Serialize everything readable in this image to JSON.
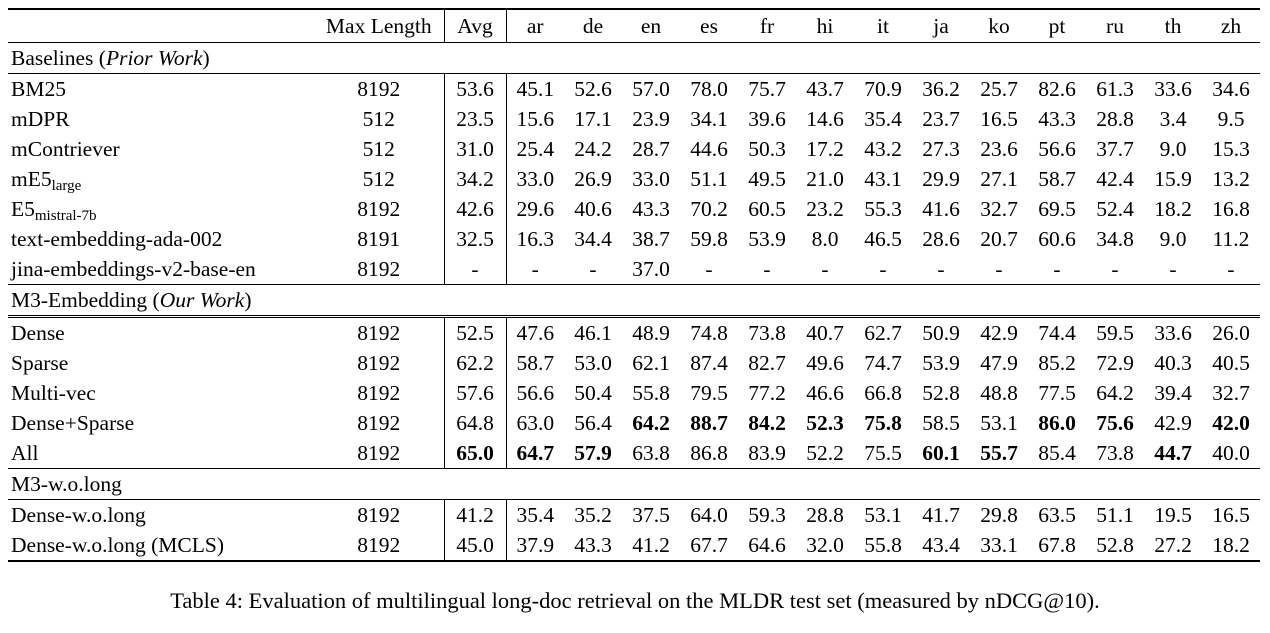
{
  "caption": "Table 4: Evaluation of multilingual long-doc retrieval on the MLDR test set (measured by nDCG@10).",
  "table": {
    "columns": [
      "",
      "Max Length",
      "Avg",
      "ar",
      "de",
      "en",
      "es",
      "fr",
      "hi",
      "it",
      "ja",
      "ko",
      "pt",
      "ru",
      "th",
      "zh"
    ],
    "sections": [
      {
        "title_plain": "Baselines (",
        "title_italic": "Prior Work",
        "title_end": ")",
        "rule_below": "single",
        "rows": [
          {
            "name": "BM25",
            "max_length": "8192",
            "avg": "53.6",
            "values": [
              "45.1",
              "52.6",
              "57.0",
              "78.0",
              "75.7",
              "43.7",
              "70.9",
              "36.2",
              "25.7",
              "82.6",
              "61.3",
              "33.6",
              "34.6"
            ]
          },
          {
            "name": "mDPR",
            "max_length": "512",
            "avg": "23.5",
            "values": [
              "15.6",
              "17.1",
              "23.9",
              "34.1",
              "39.6",
              "14.6",
              "35.4",
              "23.7",
              "16.5",
              "43.3",
              "28.8",
              "3.4",
              "9.5"
            ]
          },
          {
            "name": "mContriever",
            "max_length": "512",
            "avg": "31.0",
            "values": [
              "25.4",
              "24.2",
              "28.7",
              "44.6",
              "50.3",
              "17.2",
              "43.2",
              "27.3",
              "23.6",
              "56.6",
              "37.7",
              "9.0",
              "15.3"
            ]
          },
          {
            "name": "mE5",
            "name_sub": "large",
            "max_length": "512",
            "avg": "34.2",
            "values": [
              "33.0",
              "26.9",
              "33.0",
              "51.1",
              "49.5",
              "21.0",
              "43.1",
              "29.9",
              "27.1",
              "58.7",
              "42.4",
              "15.9",
              "13.2"
            ]
          },
          {
            "name": "E5",
            "name_sub": "mistral-7b",
            "max_length": "8192",
            "avg": "42.6",
            "values": [
              "29.6",
              "40.6",
              "43.3",
              "70.2",
              "60.5",
              "23.2",
              "55.3",
              "41.6",
              "32.7",
              "69.5",
              "52.4",
              "18.2",
              "16.8"
            ]
          },
          {
            "name": "text-embedding-ada-002",
            "max_length": "8191",
            "avg": "32.5",
            "values": [
              "16.3",
              "34.4",
              "38.7",
              "59.8",
              "53.9",
              "8.0",
              "46.5",
              "28.6",
              "20.7",
              "60.6",
              "34.8",
              "9.0",
              "11.2"
            ]
          },
          {
            "name": "jina-embeddings-v2-base-en",
            "max_length": "8192",
            "avg": "-",
            "values": [
              "-",
              "-",
              "37.0",
              "-",
              "-",
              "-",
              "-",
              "-",
              "-",
              "-",
              "-",
              "-",
              "-"
            ]
          }
        ]
      },
      {
        "title_plain": "M3-Embedding (",
        "title_italic": "Our Work",
        "title_end": ")",
        "rule_below": "double",
        "rows": [
          {
            "name": "Dense",
            "max_length": "8192",
            "avg": "52.5",
            "values": [
              "47.6",
              "46.1",
              "48.9",
              "74.8",
              "73.8",
              "40.7",
              "62.7",
              "50.9",
              "42.9",
              "74.4",
              "59.5",
              "33.6",
              "26.0"
            ]
          },
          {
            "name": "Sparse",
            "max_length": "8192",
            "avg": "62.2",
            "values": [
              "58.7",
              "53.0",
              "62.1",
              "87.4",
              "82.7",
              "49.6",
              "74.7",
              "53.9",
              "47.9",
              "85.2",
              "72.9",
              "40.3",
              "40.5"
            ]
          },
          {
            "name": "Multi-vec",
            "max_length": "8192",
            "avg": "57.6",
            "values": [
              "56.6",
              "50.4",
              "55.8",
              "79.5",
              "77.2",
              "46.6",
              "66.8",
              "52.8",
              "48.8",
              "77.5",
              "64.2",
              "39.4",
              "32.7"
            ]
          },
          {
            "name": "Dense+Sparse",
            "max_length": "8192",
            "avg": "64.8",
            "values": [
              "63.0",
              "56.4",
              "64.2",
              "88.7",
              "84.2",
              "52.3",
              "75.8",
              "58.5",
              "53.1",
              "86.0",
              "75.6",
              "42.9",
              "42.0"
            ],
            "bold": [
              0,
              0,
              1,
              1,
              1,
              1,
              1,
              0,
              0,
              1,
              1,
              0,
              1
            ]
          },
          {
            "name": "All",
            "max_length": "8192",
            "avg": "65.0",
            "avg_bold": true,
            "values": [
              "64.7",
              "57.9",
              "63.8",
              "86.8",
              "83.9",
              "52.2",
              "75.5",
              "60.1",
              "55.7",
              "85.4",
              "73.8",
              "44.7",
              "40.0"
            ],
            "bold": [
              1,
              1,
              0,
              0,
              0,
              0,
              0,
              1,
              1,
              0,
              0,
              1,
              0
            ]
          }
        ]
      },
      {
        "title_plain": "M3-w.o.long",
        "title_italic": "",
        "title_end": "",
        "rule_below": "single",
        "rows": [
          {
            "name": "Dense-w.o.long",
            "max_length": "8192",
            "avg": "41.2",
            "values": [
              "35.4",
              "35.2",
              "37.5",
              "64.0",
              "59.3",
              "28.8",
              "53.1",
              "41.7",
              "29.8",
              "63.5",
              "51.1",
              "19.5",
              "16.5"
            ]
          },
          {
            "name": "Dense-w.o.long (MCLS)",
            "max_length": "8192",
            "avg": "45.0",
            "values": [
              "37.9",
              "43.3",
              "41.2",
              "67.7",
              "64.6",
              "32.0",
              "55.8",
              "43.4",
              "33.1",
              "67.8",
              "52.8",
              "27.2",
              "18.2"
            ]
          }
        ]
      }
    ]
  }
}
